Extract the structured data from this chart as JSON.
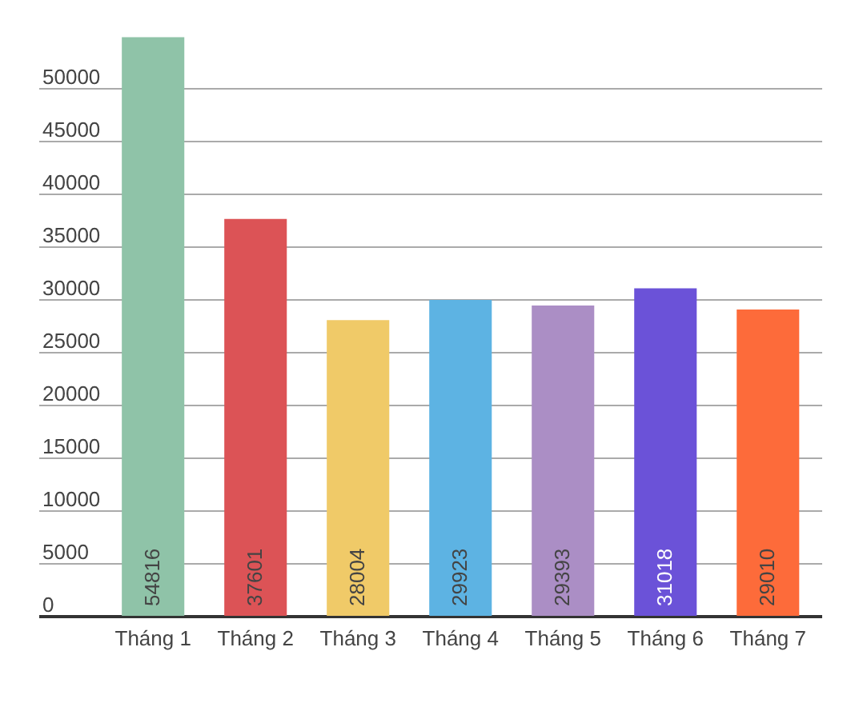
{
  "chart_data": {
    "type": "bar",
    "categories": [
      "Tháng 1",
      "Tháng 2",
      "Tháng 3",
      "Tháng 4",
      "Tháng 5",
      "Tháng 6",
      "Tháng 7"
    ],
    "values": [
      54816,
      37601,
      28004,
      29923,
      29393,
      31018,
      29010
    ],
    "colors": [
      "#8fc3a8",
      "#dc5356",
      "#f0ca68",
      "#5db3e3",
      "#ab8ec5",
      "#6b52d8",
      "#fd6b3a"
    ],
    "ylim": [
      0,
      55000
    ],
    "yticks": [
      0,
      5000,
      10000,
      15000,
      20000,
      25000,
      30000,
      35000,
      40000,
      45000,
      50000
    ],
    "grid": "y",
    "data_labels": true
  }
}
